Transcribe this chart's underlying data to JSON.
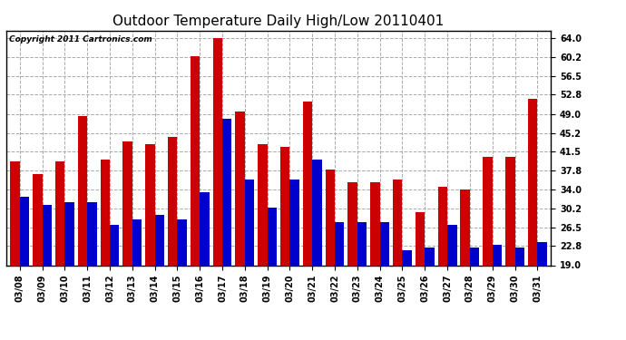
{
  "title": "Outdoor Temperature Daily High/Low 20110401",
  "copyright": "Copyright 2011 Cartronics.com",
  "categories": [
    "03/08",
    "03/09",
    "03/10",
    "03/11",
    "03/12",
    "03/13",
    "03/14",
    "03/15",
    "03/16",
    "03/17",
    "03/18",
    "03/19",
    "03/20",
    "03/21",
    "03/22",
    "03/23",
    "03/24",
    "03/25",
    "03/26",
    "03/27",
    "03/28",
    "03/29",
    "03/30",
    "03/31"
  ],
  "highs": [
    39.5,
    37.0,
    39.5,
    48.5,
    40.0,
    43.5,
    43.0,
    44.5,
    60.5,
    64.0,
    49.5,
    43.0,
    42.5,
    51.5,
    38.0,
    35.5,
    35.5,
    36.0,
    29.5,
    34.5,
    34.0,
    40.5,
    40.5,
    52.0
  ],
  "lows": [
    32.5,
    31.0,
    31.5,
    31.5,
    27.0,
    28.0,
    29.0,
    28.0,
    33.5,
    48.0,
    36.0,
    30.5,
    36.0,
    40.0,
    27.5,
    27.5,
    27.5,
    22.0,
    22.5,
    27.0,
    22.5,
    23.0,
    22.5,
    23.5
  ],
  "high_color": "#cc0000",
  "low_color": "#0000cc",
  "background": "#ffffff",
  "plot_bg": "#ffffff",
  "grid_color": "#aaaaaa",
  "yticks": [
    19.0,
    22.8,
    26.5,
    30.2,
    34.0,
    37.8,
    41.5,
    45.2,
    49.0,
    52.8,
    56.5,
    60.2,
    64.0
  ],
  "ymin": 19.0,
  "ymax": 65.5,
  "bar_width": 0.42,
  "title_fontsize": 11,
  "copyright_fontsize": 6.5,
  "tick_fontsize": 7,
  "figwidth": 6.9,
  "figheight": 3.75,
  "dpi": 100
}
